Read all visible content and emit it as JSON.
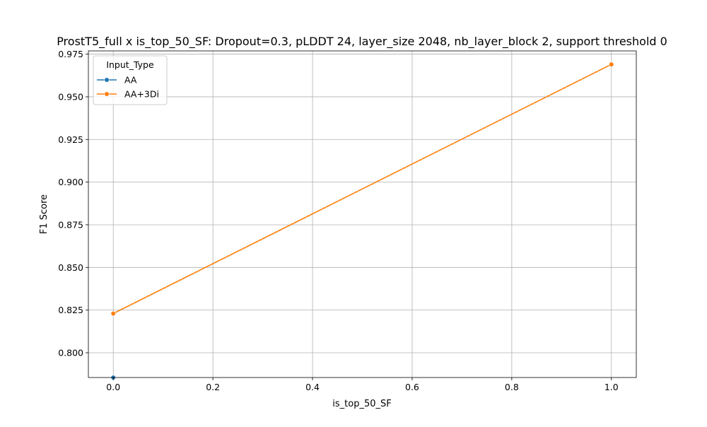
{
  "chart_data": {
    "type": "line",
    "title": "ProstT5_full x is_top_50_SF: Dropout=0.3, pLDDT 24, layer_size 2048, nb_layer_block 2, support threshold 0",
    "xlabel": "is_top_50_SF",
    "ylabel": "F1 Score",
    "xlim": [
      -0.05,
      1.05
    ],
    "ylim": [
      0.7855,
      0.9769
    ],
    "x_ticks": [
      0.0,
      0.2,
      0.4,
      0.6,
      0.8,
      1.0
    ],
    "x_tick_labels": [
      "0.0",
      "0.2",
      "0.4",
      "0.6",
      "0.8",
      "1.0"
    ],
    "y_ticks": [
      0.8,
      0.825,
      0.85,
      0.875,
      0.9,
      0.925,
      0.95,
      0.975
    ],
    "y_tick_labels": [
      "0.800",
      "0.825",
      "0.850",
      "0.875",
      "0.900",
      "0.925",
      "0.950",
      "0.975"
    ],
    "grid": true,
    "legend": {
      "title": "Input_Type",
      "position": "top-left"
    },
    "series": [
      {
        "name": "AA",
        "color": "#1f77b4",
        "x": [
          0.0
        ],
        "y": [
          0.7855
        ]
      },
      {
        "name": "AA+3Di",
        "color": "#ff7f0e",
        "x": [
          0.0,
          1.0
        ],
        "y": [
          0.823,
          0.969
        ]
      }
    ]
  }
}
